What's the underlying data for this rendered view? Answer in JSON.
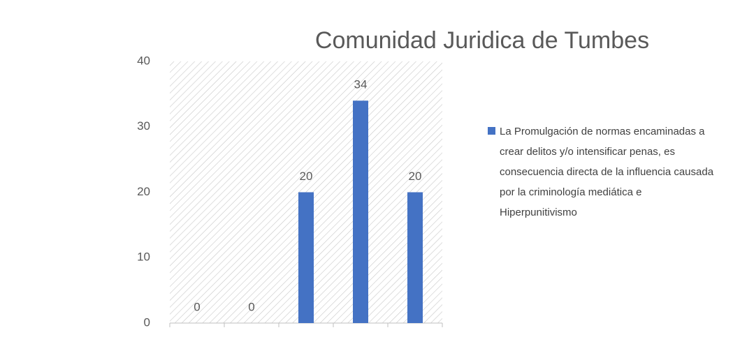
{
  "chart_data": {
    "type": "bar",
    "title": "Comunidad Juridica de Tumbes",
    "categories": [
      null,
      null,
      null,
      null,
      null
    ],
    "series": [
      {
        "name": "La Promulgación de normas encaminadas a crear delitos y/o intensificar penas, es consecuencia directa de la influencia causada por la criminología mediática e Hiperpunitivismo",
        "color": "#4472c4",
        "values": [
          0,
          0,
          20,
          34,
          20
        ]
      }
    ],
    "ylim": [
      0,
      40
    ],
    "yticks": [
      0,
      10,
      20,
      30,
      40
    ],
    "grid": false,
    "legend": "right"
  }
}
